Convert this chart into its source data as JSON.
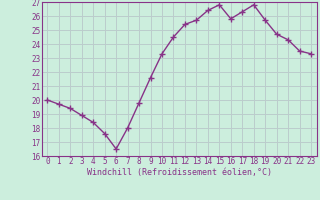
{
  "x": [
    0,
    1,
    2,
    3,
    4,
    5,
    6,
    7,
    8,
    9,
    10,
    11,
    12,
    13,
    14,
    15,
    16,
    17,
    18,
    19,
    20,
    21,
    22,
    23
  ],
  "y": [
    20.0,
    19.7,
    19.4,
    18.9,
    18.4,
    17.6,
    16.5,
    18.0,
    19.8,
    21.6,
    23.3,
    24.5,
    25.4,
    25.7,
    26.4,
    26.8,
    25.8,
    26.3,
    26.8,
    25.7,
    24.7,
    24.3,
    23.5,
    23.3
  ],
  "line_color": "#883388",
  "marker": "+",
  "marker_size": 4,
  "bg_color": "#cceedd",
  "grid_color": "#bbcccc",
  "xlabel": "Windchill (Refroidissement éolien,°C)",
  "xlabel_color": "#883388",
  "tick_color": "#883388",
  "spine_color": "#883388",
  "ylim": [
    16,
    27
  ],
  "xlim": [
    -0.5,
    23.5
  ],
  "yticks": [
    16,
    17,
    18,
    19,
    20,
    21,
    22,
    23,
    24,
    25,
    26,
    27
  ],
  "xticks": [
    0,
    1,
    2,
    3,
    4,
    5,
    6,
    7,
    8,
    9,
    10,
    11,
    12,
    13,
    14,
    15,
    16,
    17,
    18,
    19,
    20,
    21,
    22,
    23
  ],
  "tick_fontsize": 5.5,
  "xlabel_fontsize": 6.0,
  "linewidth": 1.0
}
